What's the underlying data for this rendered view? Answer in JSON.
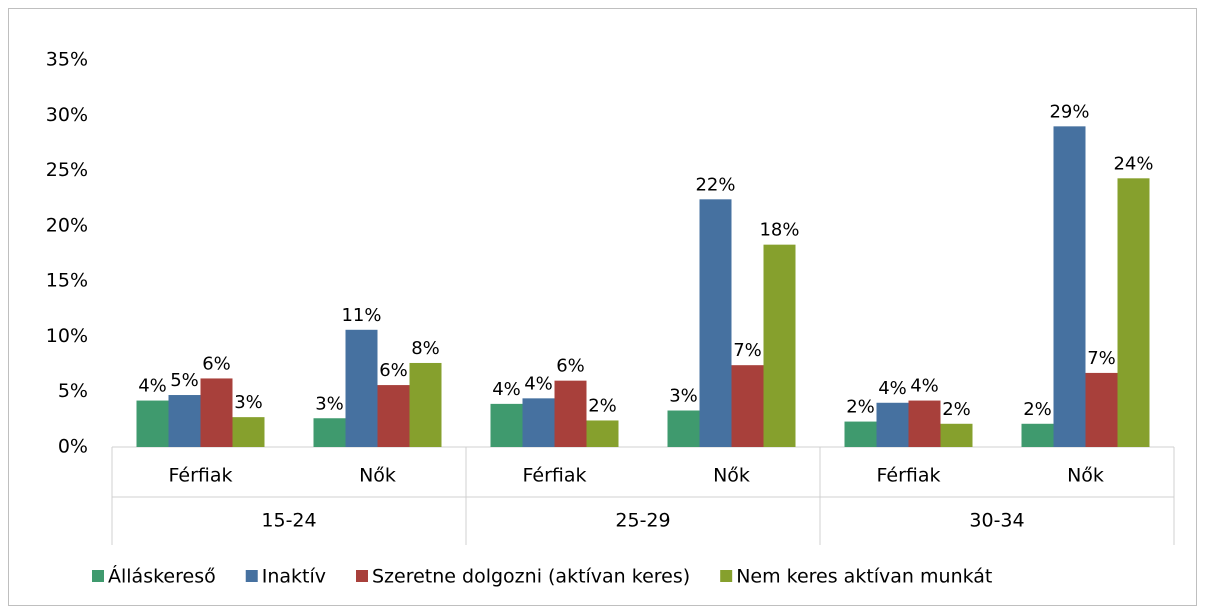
{
  "chart_data": {
    "type": "bar",
    "categories": [
      "Férfiak",
      "Nők",
      "Férfiak",
      "Nők",
      "Férfiak",
      "Nők"
    ],
    "category_groups": [
      "15-24",
      "25-29",
      "30-34"
    ],
    "series": [
      {
        "name": "Álláskereső",
        "color": "#3f9a6e",
        "values": [
          4.2,
          2.6,
          3.9,
          3.3,
          2.3,
          2.1
        ],
        "value_labels": [
          "4%",
          "3%",
          "4%",
          "3%",
          "2%",
          "2%"
        ]
      },
      {
        "name": "Inaktív",
        "color": "#4671a0",
        "values": [
          4.7,
          10.6,
          4.4,
          22.4,
          4.0,
          29.0
        ],
        "value_labels": [
          "5%",
          "11%",
          "4%",
          "22%",
          "4%",
          "29%"
        ]
      },
      {
        "name": "Szeretne dolgozni (aktívan keres)",
        "color": "#a8403b",
        "values": [
          6.2,
          5.6,
          6.0,
          7.4,
          4.2,
          6.7
        ],
        "value_labels": [
          "6%",
          "6%",
          "6%",
          "7%",
          "4%",
          "7%"
        ]
      },
      {
        "name": "Nem keres aktívan munkát",
        "color": "#86a02d",
        "values": [
          2.7,
          7.6,
          2.4,
          18.3,
          2.1,
          24.3
        ],
        "value_labels": [
          "3%",
          "8%",
          "2%",
          "18%",
          "2%",
          "24%"
        ]
      }
    ],
    "ylim": [
      0,
      35
    ],
    "yticks": [
      {
        "value": 0,
        "label": "0%"
      },
      {
        "value": 5,
        "label": "5%"
      },
      {
        "value": 10,
        "label": "10%"
      },
      {
        "value": 15,
        "label": "15%"
      },
      {
        "value": 20,
        "label": "20%"
      },
      {
        "value": 25,
        "label": "25%"
      },
      {
        "value": 30,
        "label": "30%"
      },
      {
        "value": 35,
        "label": "35%"
      }
    ],
    "legend": "bottom"
  }
}
